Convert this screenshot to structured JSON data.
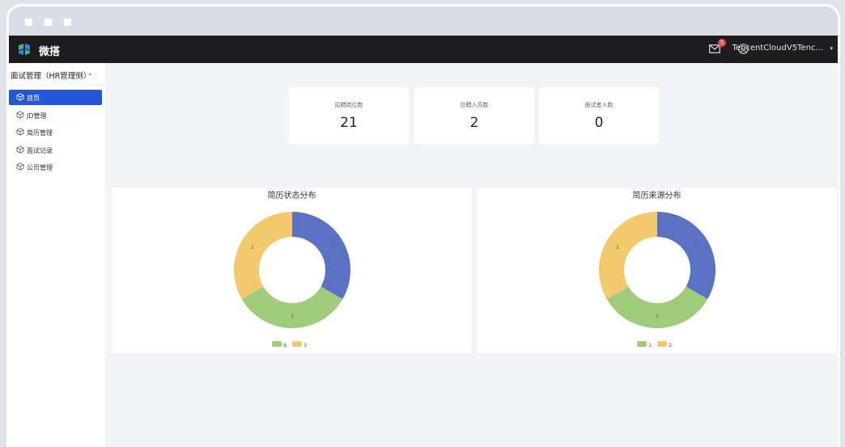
{
  "app": {
    "brand": "微搭"
  },
  "header": {
    "notification_count": "5",
    "user_name": "TencentCloudV5Tenc...",
    "user_caret": "▾"
  },
  "sidebar": {
    "role_selector": "面试管理（HR管理侧）",
    "role_caret": "⌄",
    "items": [
      {
        "label": "首页",
        "active": true
      },
      {
        "label": "JD管理",
        "active": false
      },
      {
        "label": "简历管理",
        "active": false
      },
      {
        "label": "面试记录",
        "active": false
      },
      {
        "label": "公司管理",
        "active": false
      }
    ]
  },
  "stats": [
    {
      "label": "招聘岗位数",
      "value": "21"
    },
    {
      "label": "应聘人员数",
      "value": "2"
    },
    {
      "label": "面试者人数",
      "value": "0"
    }
  ],
  "colors": {
    "blue": "#5b72c4",
    "green": "#9fcb7b",
    "yellow": "#f2c96d",
    "accent": "#2357d8",
    "topbar": "#1d1d1f"
  },
  "chart_data": [
    {
      "type": "pie",
      "title": "简历状态分布",
      "slices": [
        {
          "value": 1,
          "color": "#5b72c4",
          "label": "1"
        },
        {
          "value": 1,
          "color": "#9fcb7b",
          "label": "1"
        },
        {
          "value": 1,
          "color": "#f2c96d",
          "label": "1"
        }
      ],
      "legend": [
        {
          "name": "6",
          "color": "#9fcb7b"
        },
        {
          "name": "3",
          "color": "#f2c96d"
        }
      ]
    },
    {
      "type": "pie",
      "title": "简历来源分布",
      "slices": [
        {
          "value": 1,
          "color": "#5b72c4",
          "label": "1"
        },
        {
          "value": 1,
          "color": "#9fcb7b",
          "label": "1"
        },
        {
          "value": 1,
          "color": "#f2c96d",
          "label": "1"
        }
      ],
      "legend": [
        {
          "name": "1",
          "color": "#9fcb7b"
        },
        {
          "name": "2",
          "color": "#f2c96d"
        }
      ]
    }
  ]
}
